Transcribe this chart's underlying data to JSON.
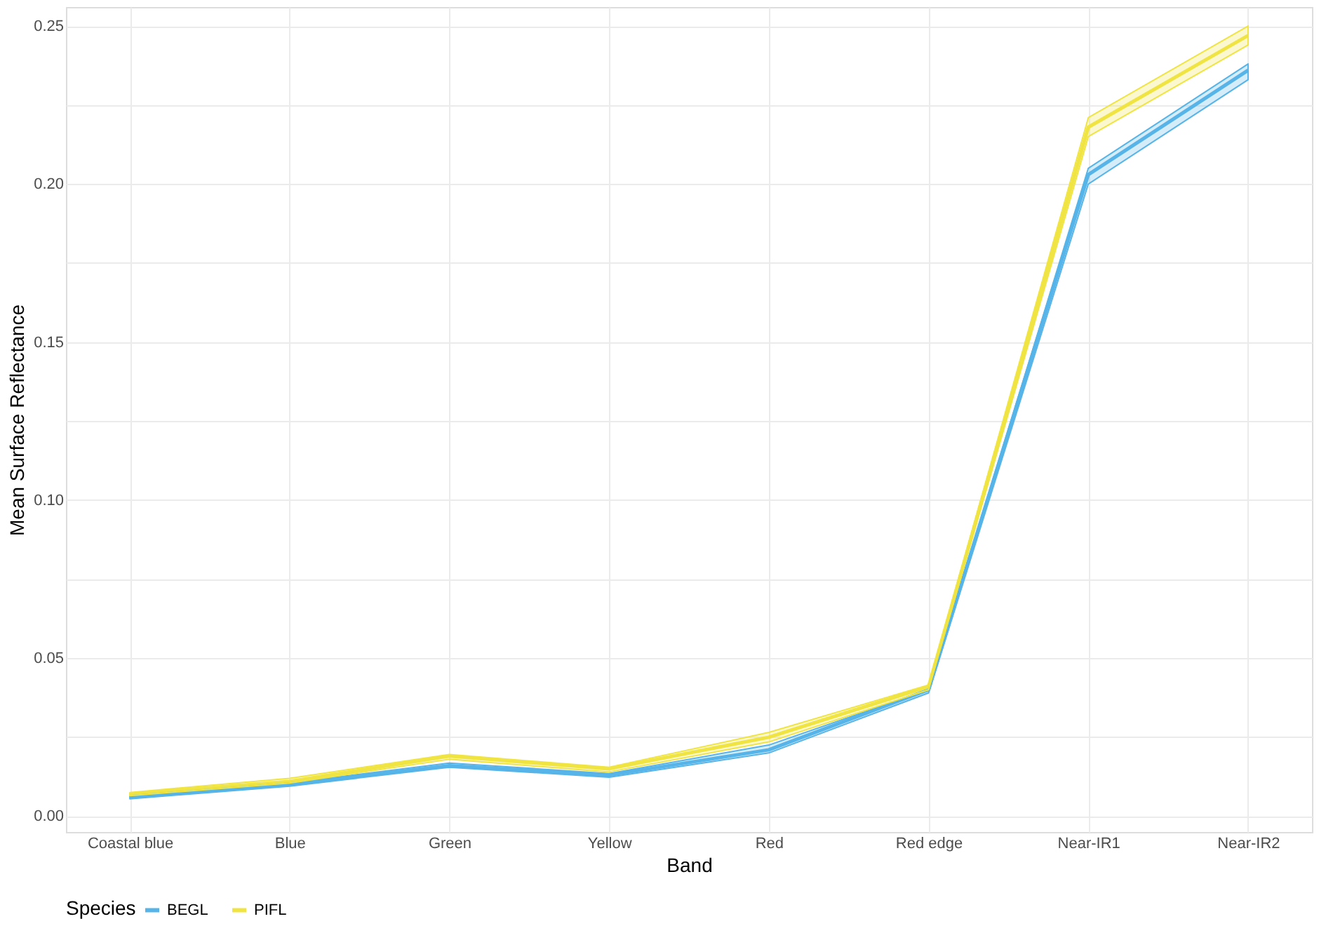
{
  "chart_data": {
    "type": "line",
    "xlabel": "Band",
    "ylabel": "Mean Surface Reflectance",
    "legend_title": "Species",
    "categories": [
      "Coastal blue",
      "Blue",
      "Green",
      "Yellow",
      "Red",
      "Red edge",
      "Near-IR1",
      "Near-IR2"
    ],
    "series": [
      {
        "name": "BEGL",
        "color": "#56b4e9",
        "values": [
          0.006,
          0.01,
          0.016,
          0.013,
          0.021,
          0.04,
          0.203,
          0.236
        ],
        "lower": [
          0.0055,
          0.0095,
          0.0155,
          0.0123,
          0.02,
          0.039,
          0.2,
          0.233
        ],
        "upper": [
          0.0065,
          0.0105,
          0.0168,
          0.0135,
          0.0225,
          0.04,
          0.205,
          0.238
        ]
      },
      {
        "name": "PIFL",
        "color": "#f0e442",
        "values": [
          0.007,
          0.011,
          0.019,
          0.015,
          0.025,
          0.041,
          0.218,
          0.247
        ],
        "lower": [
          0.0065,
          0.0105,
          0.018,
          0.014,
          0.0235,
          0.04,
          0.215,
          0.244
        ],
        "upper": [
          0.0075,
          0.012,
          0.0195,
          0.0155,
          0.0265,
          0.0415,
          0.221,
          0.25
        ]
      }
    ],
    "ylim": [
      -0.005,
      0.256
    ],
    "yticks": [
      {
        "value": 0,
        "label": "0.00"
      },
      {
        "value": 0.025,
        "label": null
      },
      0.05,
      {
        "value": 0.075,
        "label": null
      },
      {
        "value": 0.1,
        "label": "0.10"
      },
      {
        "value": 0.125,
        "label": null
      },
      0.15,
      {
        "value": 0.175,
        "label": null
      },
      {
        "value": 0.2,
        "label": "0.20"
      },
      {
        "value": 0.225,
        "label": null
      },
      0.25
    ],
    "grid": true,
    "legend": "bottom",
    "marker": "none",
    "line_style": "solid"
  }
}
